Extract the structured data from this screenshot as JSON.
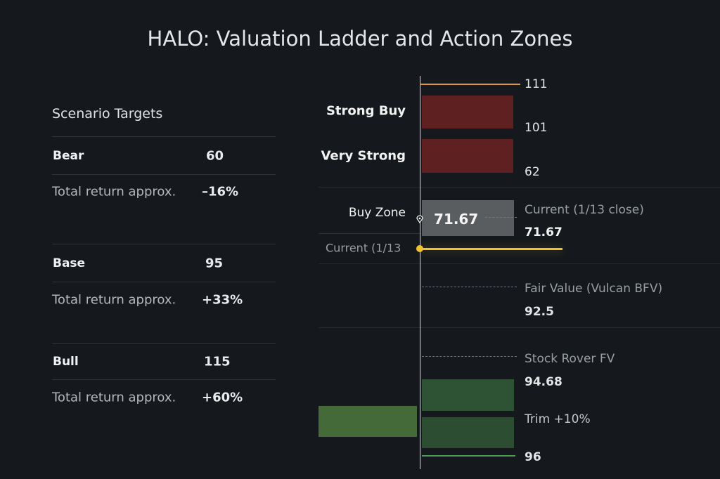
{
  "title": "HALO: Valuation Ladder and Action Zones",
  "scenario": {
    "header": "Scenario Targets",
    "rows": [
      {
        "name": "Bear",
        "target": "60",
        "return_label": "Total return approx.",
        "return": "–16%"
      },
      {
        "name": "Base",
        "target": "95",
        "return_label": "Total return approx.",
        "return": "+33%"
      },
      {
        "name": "Bull",
        "target": "115",
        "return_label": "Total return approx.",
        "return": "+60%"
      }
    ]
  },
  "ladder": {
    "top_level": "111",
    "zones": {
      "strong_buy": {
        "label": "Strong Buy",
        "level": "101"
      },
      "very_strong": {
        "label": "Very Strong",
        "level": "62"
      },
      "buy_zone": {
        "label": "Buy Zone",
        "value": "71.67"
      }
    },
    "current_left_label": "Current (1/13",
    "current": {
      "label": "Current (1/13 close)",
      "value": "71.67"
    },
    "fair_value": {
      "label": "Fair Value (Vulcan BFV)",
      "value": "92.5"
    },
    "stock_rover": {
      "label": "Stock Rover FV",
      "value": "94.68"
    },
    "trim": {
      "label": "Trim +10%",
      "level": "96"
    },
    "colors": {
      "red": "#5e2020",
      "green": "#2e5234",
      "green_light": "#456a3a",
      "yellow": "#f2c12e",
      "orange": "#d9963a"
    }
  }
}
